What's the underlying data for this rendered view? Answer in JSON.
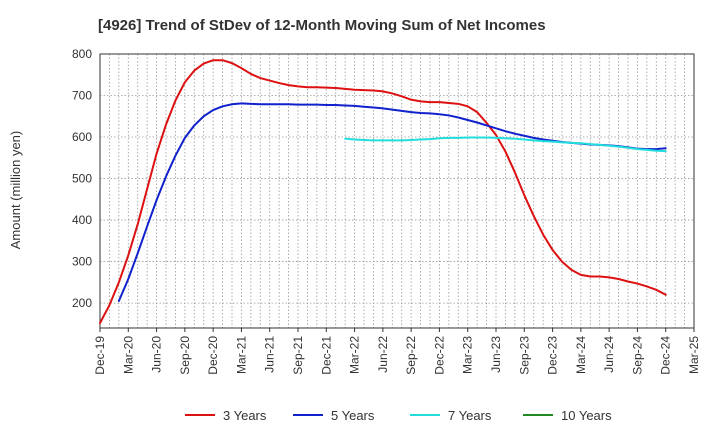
{
  "chart_data": {
    "type": "line",
    "title": "[4926]  Trend of StDev of 12-Month Moving Sum of Net Incomes",
    "xlabel": "",
    "ylabel": "Amount (million yen)",
    "ylim": [
      140,
      800
    ],
    "yticks": [
      200,
      300,
      400,
      500,
      600,
      700,
      800
    ],
    "x_ticks": [
      "Dec-19",
      "Mar-20",
      "Jun-20",
      "Sep-20",
      "Dec-20",
      "Mar-21",
      "Jun-21",
      "Sep-21",
      "Dec-21",
      "Mar-22",
      "Jun-22",
      "Sep-22",
      "Dec-22",
      "Mar-23",
      "Jun-23",
      "Sep-23",
      "Dec-23",
      "Mar-24",
      "Jun-24",
      "Sep-24",
      "Dec-24",
      "Mar-25"
    ],
    "grid": true,
    "legend_position": "bottom",
    "series": [
      {
        "name": "3 Years",
        "color": "#dd1111",
        "points": [
          [
            "Dec-19",
            152
          ],
          [
            "Jan-20",
            195
          ],
          [
            "Feb-20",
            250
          ],
          [
            "Mar-20",
            315
          ],
          [
            "Apr-20",
            390
          ],
          [
            "May-20",
            475
          ],
          [
            "Jun-20",
            560
          ],
          [
            "Jul-20",
            630
          ],
          [
            "Aug-20",
            688
          ],
          [
            "Sep-20",
            732
          ],
          [
            "Oct-20",
            760
          ],
          [
            "Nov-20",
            777
          ],
          [
            "Dec-20",
            785
          ],
          [
            "Jan-21",
            785
          ],
          [
            "Feb-21",
            778
          ],
          [
            "Mar-21",
            766
          ],
          [
            "Apr-21",
            752
          ],
          [
            "May-21",
            742
          ],
          [
            "Jun-21",
            736
          ],
          [
            "Jul-21",
            730
          ],
          [
            "Aug-21",
            725
          ],
          [
            "Sep-21",
            722
          ],
          [
            "Oct-21",
            720
          ],
          [
            "Nov-21",
            720
          ],
          [
            "Dec-21",
            719
          ],
          [
            "Jan-22",
            718
          ],
          [
            "Feb-22",
            716
          ],
          [
            "Mar-22",
            714
          ],
          [
            "Apr-22",
            713
          ],
          [
            "May-22",
            712
          ],
          [
            "Jun-22",
            710
          ],
          [
            "Jul-22",
            705
          ],
          [
            "Aug-22",
            698
          ],
          [
            "Sep-22",
            690
          ],
          [
            "Oct-22",
            686
          ],
          [
            "Nov-22",
            684
          ],
          [
            "Dec-22",
            684
          ],
          [
            "Jan-23",
            682
          ],
          [
            "Feb-23",
            680
          ],
          [
            "Mar-23",
            674
          ],
          [
            "Apr-23",
            660
          ],
          [
            "May-23",
            634
          ],
          [
            "Jun-23",
            605
          ],
          [
            "Jul-23",
            565
          ],
          [
            "Aug-23",
            515
          ],
          [
            "Sep-23",
            460
          ],
          [
            "Oct-23",
            410
          ],
          [
            "Nov-23",
            365
          ],
          [
            "Dec-23",
            328
          ],
          [
            "Jan-24",
            300
          ],
          [
            "Feb-24",
            280
          ],
          [
            "Mar-24",
            268
          ],
          [
            "Apr-24",
            264
          ],
          [
            "May-24",
            264
          ],
          [
            "Jun-24",
            262
          ],
          [
            "Jul-24",
            258
          ],
          [
            "Aug-24",
            252
          ],
          [
            "Sep-24",
            247
          ],
          [
            "Oct-24",
            240
          ],
          [
            "Nov-24",
            232
          ],
          [
            "Dec-24",
            220
          ]
        ]
      },
      {
        "name": "5 Years",
        "color": "#1122cc",
        "points": [
          [
            "Feb-20",
            205
          ],
          [
            "Mar-20",
            258
          ],
          [
            "Apr-20",
            320
          ],
          [
            "May-20",
            385
          ],
          [
            "Jun-20",
            448
          ],
          [
            "Jul-20",
            505
          ],
          [
            "Aug-20",
            555
          ],
          [
            "Sep-20",
            598
          ],
          [
            "Oct-20",
            628
          ],
          [
            "Nov-20",
            650
          ],
          [
            "Dec-20",
            665
          ],
          [
            "Jan-21",
            674
          ],
          [
            "Feb-21",
            679
          ],
          [
            "Mar-21",
            681
          ],
          [
            "Apr-21",
            680
          ],
          [
            "May-21",
            679
          ],
          [
            "Jun-21",
            679
          ],
          [
            "Jul-21",
            679
          ],
          [
            "Aug-21",
            679
          ],
          [
            "Sep-21",
            678
          ],
          [
            "Oct-21",
            678
          ],
          [
            "Nov-21",
            678
          ],
          [
            "Dec-21",
            677
          ],
          [
            "Jan-22",
            677
          ],
          [
            "Feb-22",
            676
          ],
          [
            "Mar-22",
            675
          ],
          [
            "Apr-22",
            673
          ],
          [
            "May-22",
            671
          ],
          [
            "Jun-22",
            669
          ],
          [
            "Jul-22",
            666
          ],
          [
            "Aug-22",
            663
          ],
          [
            "Sep-22",
            660
          ],
          [
            "Oct-22",
            658
          ],
          [
            "Nov-22",
            657
          ],
          [
            "Dec-22",
            655
          ],
          [
            "Jan-23",
            652
          ],
          [
            "Feb-23",
            647
          ],
          [
            "Mar-23",
            641
          ],
          [
            "Apr-23",
            635
          ],
          [
            "May-23",
            628
          ],
          [
            "Jun-23",
            621
          ],
          [
            "Jul-23",
            614
          ],
          [
            "Aug-23",
            608
          ],
          [
            "Sep-23",
            603
          ],
          [
            "Oct-23",
            598
          ],
          [
            "Nov-23",
            594
          ],
          [
            "Dec-23",
            591
          ],
          [
            "Jan-24",
            588
          ],
          [
            "Feb-24",
            586
          ],
          [
            "Mar-24",
            584
          ],
          [
            "Apr-24",
            582
          ],
          [
            "May-24",
            581
          ],
          [
            "Jun-24",
            580
          ],
          [
            "Jul-24",
            578
          ],
          [
            "Aug-24",
            575
          ],
          [
            "Sep-24",
            572
          ],
          [
            "Oct-24",
            571
          ],
          [
            "Nov-24",
            571
          ],
          [
            "Dec-24",
            573
          ]
        ]
      },
      {
        "name": "7 Years",
        "color": "#22dddd",
        "points": [
          [
            "Feb-22",
            596
          ],
          [
            "Mar-22",
            594
          ],
          [
            "Apr-22",
            593
          ],
          [
            "May-22",
            592
          ],
          [
            "Jun-22",
            592
          ],
          [
            "Jul-22",
            592
          ],
          [
            "Aug-22",
            592
          ],
          [
            "Sep-22",
            593
          ],
          [
            "Oct-22",
            594
          ],
          [
            "Nov-22",
            595
          ],
          [
            "Dec-22",
            597
          ],
          [
            "Jan-23",
            598
          ],
          [
            "Feb-23",
            598
          ],
          [
            "Mar-23",
            599
          ],
          [
            "Apr-23",
            599
          ],
          [
            "May-23",
            599
          ],
          [
            "Jun-23",
            598
          ],
          [
            "Jul-23",
            597
          ],
          [
            "Aug-23",
            596
          ],
          [
            "Sep-23",
            594
          ],
          [
            "Oct-23",
            592
          ],
          [
            "Nov-23",
            590
          ],
          [
            "Dec-23",
            589
          ],
          [
            "Jan-24",
            587
          ],
          [
            "Feb-24",
            586
          ],
          [
            "Mar-24",
            585
          ],
          [
            "Apr-24",
            583
          ],
          [
            "May-24",
            581
          ],
          [
            "Jun-24",
            579
          ],
          [
            "Jul-24",
            577
          ],
          [
            "Aug-24",
            574
          ],
          [
            "Sep-24",
            571
          ],
          [
            "Oct-24",
            569
          ],
          [
            "Nov-24",
            567
          ],
          [
            "Dec-24",
            566
          ]
        ]
      },
      {
        "name": "10 Years",
        "color": "#228822",
        "points": []
      }
    ]
  }
}
